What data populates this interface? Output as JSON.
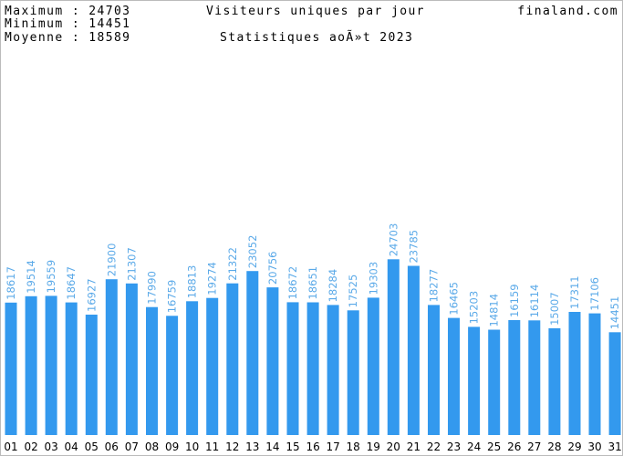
{
  "header": {
    "max_label": "Maximum  :  24703",
    "min_label": "Minimum  :  14451",
    "avg_label": "Moyenne  :  18589",
    "title": "Visiteurs uniques par jour",
    "subtitle": "Statistiques aoÃ»t 2023",
    "site": "finaland.com"
  },
  "colors": {
    "bar": "#3399ee",
    "value_label": "#5aa9e8",
    "background": "#ffffff",
    "border": "#bbbbbb"
  },
  "chart_data": {
    "type": "bar",
    "title": "Visiteurs uniques par jour",
    "subtitle": "Statistiques aoÃ»t 2023",
    "categories": [
      "01",
      "02",
      "03",
      "04",
      "05",
      "06",
      "07",
      "08",
      "09",
      "10",
      "11",
      "12",
      "13",
      "14",
      "15",
      "16",
      "17",
      "18",
      "19",
      "20",
      "21",
      "22",
      "23",
      "24",
      "25",
      "26",
      "27",
      "28",
      "29",
      "30",
      "31"
    ],
    "values": [
      18617,
      19514,
      19559,
      18647,
      16927,
      21900,
      21307,
      17990,
      16759,
      18813,
      19274,
      21322,
      23052,
      20756,
      18672,
      18651,
      18284,
      17525,
      19303,
      24703,
      23785,
      18277,
      16465,
      15203,
      14814,
      16159,
      16114,
      15007,
      17311,
      17106,
      14451
    ],
    "ylim": [
      0,
      44000
    ],
    "grid": false,
    "legend": "none"
  }
}
